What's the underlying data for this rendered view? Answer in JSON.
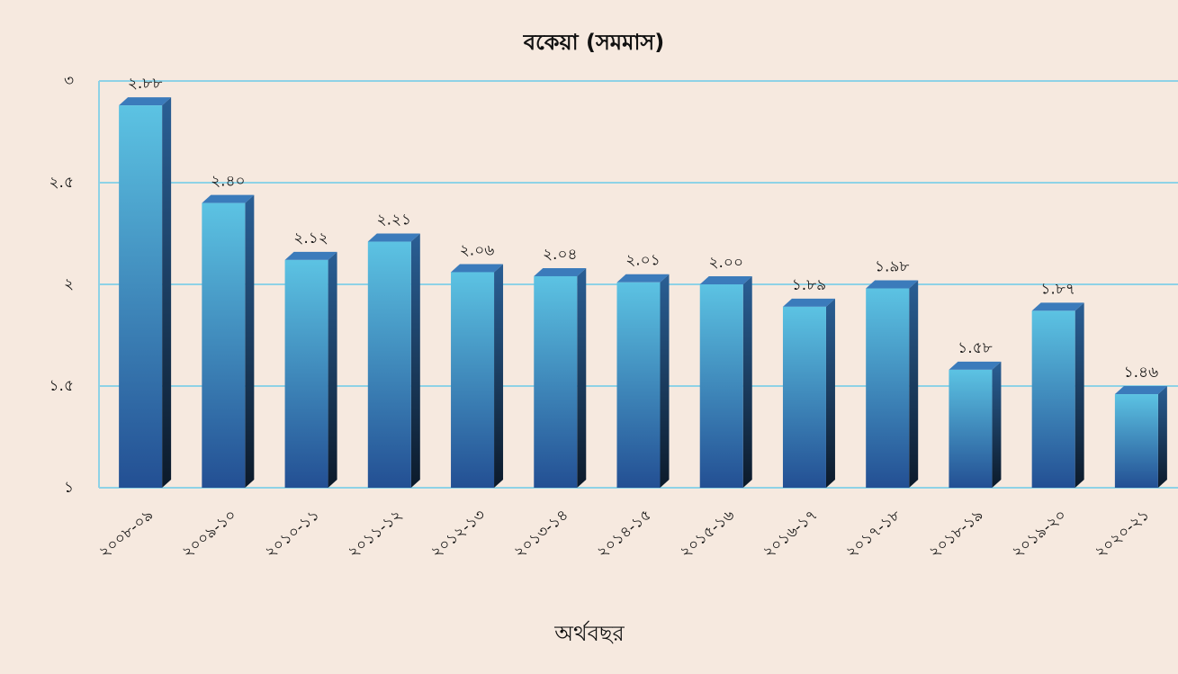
{
  "chart_data": {
    "type": "bar",
    "title": "বকেয়া (সমমাস)",
    "x_label": "অর্থবছর",
    "categories": [
      "২০০৮-০৯",
      "২০০৯-১০",
      "২০১০-১১",
      "২০১১-১২",
      "২০১২-১৩",
      "২০১৩-১৪",
      "২০১৪-১৫",
      "২০১৫-১৬",
      "২০১৬-১৭",
      "২০১৭-১৮",
      "২০১৮-১৯",
      "২০১৯-২০",
      "২০২০-২১"
    ],
    "values": [
      2.88,
      2.4,
      2.12,
      2.21,
      2.06,
      2.04,
      2.01,
      2.0,
      1.89,
      1.98,
      1.58,
      1.87,
      1.46
    ],
    "value_labels": [
      "২.৮৮",
      "২.৪০",
      "২.১২",
      "২.২১",
      "২.০৬",
      "২.০৪",
      "২.০১",
      "২.০০",
      "১.৮৯",
      "১.৯৮",
      "১.৫৮",
      "১.৮৭",
      "১.৪৬"
    ],
    "color": "#4aa8d8",
    "ylim": [
      1,
      3
    ],
    "yticks": [
      {
        "value": 1,
        "label": "১"
      },
      {
        "value": 1.5,
        "label": "১.৫"
      },
      {
        "value": 2,
        "label": "২"
      },
      {
        "value": 2.5,
        "label": "২.৫"
      },
      {
        "value": 3,
        "label": "৩"
      }
    ],
    "grid": true
  }
}
